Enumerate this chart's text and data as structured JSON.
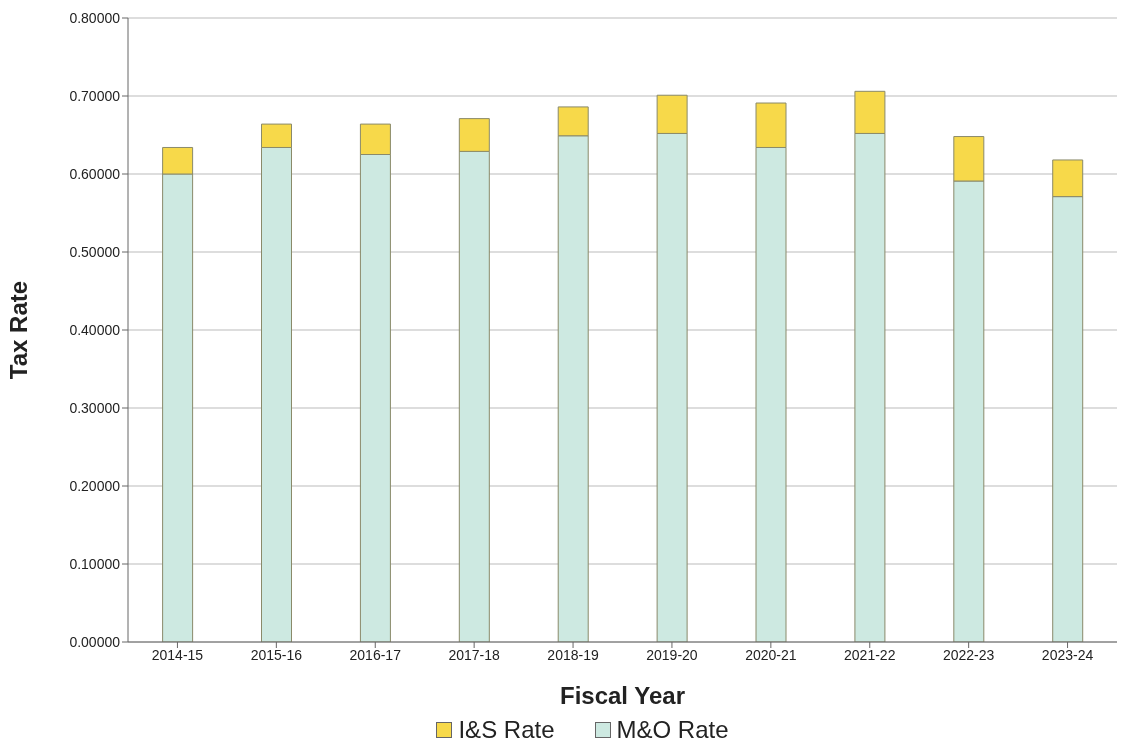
{
  "chart_data": {
    "type": "bar",
    "stacked": true,
    "xlabel": "Fiscal Year",
    "ylabel": "Tax Rate",
    "categories": [
      "2014-15",
      "2015-16",
      "2016-17",
      "2017-18",
      "2018-19",
      "2019-20",
      "2020-21",
      "2021-22",
      "2022-23",
      "2023-24"
    ],
    "series": [
      {
        "name": "M&O Rate",
        "color": "#cde9e1",
        "values": [
          0.6,
          0.634,
          0.625,
          0.629,
          0.649,
          0.652,
          0.634,
          0.652,
          0.591,
          0.571
        ]
      },
      {
        "name": "I&S Rate",
        "color": "#f7d94a",
        "values": [
          0.034,
          0.03,
          0.039,
          0.042,
          0.037,
          0.049,
          0.057,
          0.054,
          0.057,
          0.047
        ]
      }
    ],
    "ylim": [
      0,
      0.8
    ],
    "yticks": [
      {
        "value": 0,
        "label": "0.00000"
      },
      {
        "value": 0.1,
        "label": "0.10000"
      },
      {
        "value": 0.2,
        "label": "0.20000"
      },
      {
        "value": 0.3,
        "label": "0.30000"
      },
      {
        "value": 0.4,
        "label": "0.40000"
      },
      {
        "value": 0.5,
        "label": "0.50000"
      },
      {
        "value": 0.6,
        "label": "0.60000"
      },
      {
        "value": 0.7,
        "label": "0.70000"
      },
      {
        "value": 0.8,
        "label": "0.80000"
      }
    ],
    "grid": "y",
    "legend": "bottom"
  }
}
